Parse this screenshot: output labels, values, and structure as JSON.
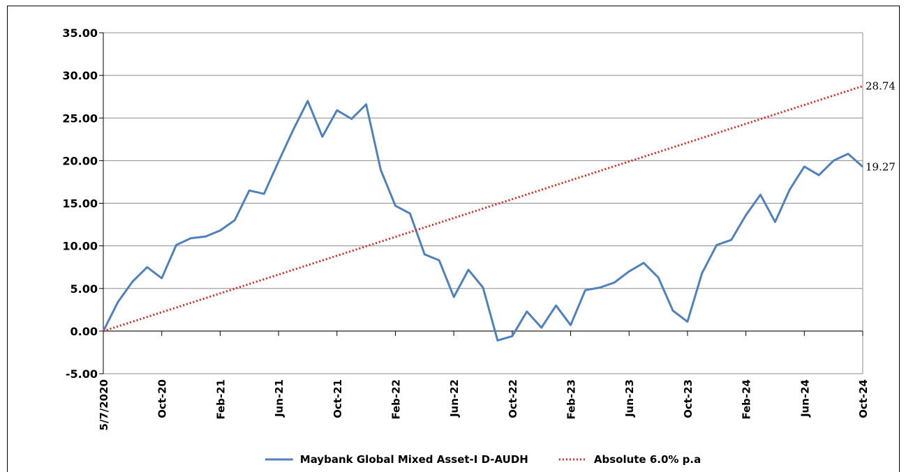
{
  "chart_data": {
    "type": "line",
    "title": "",
    "xlabel": "",
    "ylabel": "",
    "ylim": [
      -5,
      35
    ],
    "yticks": [
      "35.00",
      "30.00",
      "25.00",
      "20.00",
      "15.00",
      "10.00",
      "5.00",
      "0.00",
      "-5.00"
    ],
    "ytick_values": [
      35,
      30,
      25,
      20,
      15,
      10,
      5,
      0,
      -5
    ],
    "xticks": [
      "5/7/2020",
      "Oct-20",
      "Feb-21",
      "Jun-21",
      "Oct-21",
      "Feb-22",
      "Jun-22",
      "Oct-22",
      "Feb-23",
      "Jun-23",
      "Oct-23",
      "Feb-24",
      "Jun-24",
      "Oct-24"
    ],
    "grid": "horizontal",
    "legend_position": "bottom",
    "series": [
      {
        "name": "Maybank Global Mixed Asset-I D-AUDH",
        "color": "#4f81bd",
        "style": "solid",
        "values": [
          0.0,
          3.4,
          5.8,
          7.5,
          6.2,
          10.1,
          10.9,
          11.1,
          11.8,
          13.0,
          16.5,
          16.1,
          19.9,
          23.6,
          27.0,
          22.8,
          25.9,
          24.9,
          26.6,
          18.9,
          14.7,
          13.8,
          9.0,
          8.3,
          4.0,
          7.2,
          5.1,
          -1.1,
          -0.6,
          2.3,
          0.4,
          3.0,
          0.7,
          4.8,
          5.1,
          5.7,
          7.0,
          8.0,
          6.3,
          2.4,
          1.1,
          6.8,
          10.1,
          10.7,
          13.6,
          16.0,
          12.8,
          16.6,
          19.3,
          18.3,
          20.0,
          20.8,
          19.27
        ],
        "end_label": "19.27"
      },
      {
        "name": "Absolute 6.0% p.a",
        "color": "#e0261b",
        "style": "dotted",
        "values": [
          0.0,
          28.74
        ],
        "end_label": "28.74"
      }
    ]
  }
}
